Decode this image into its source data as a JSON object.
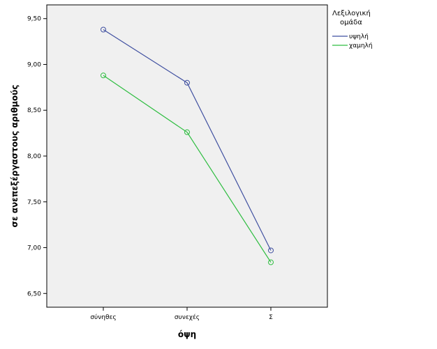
{
  "chart_data": {
    "type": "line",
    "categories": [
      "σύνηθες",
      "συνεχές",
      "Σ"
    ],
    "xlabel": "όψη",
    "ylabel": "σε ανεπεξέργαστους αριθμούς",
    "ylim": [
      6.35,
      9.65
    ],
    "yticks": [
      6.5,
      7.0,
      7.5,
      8.0,
      8.5,
      9.0,
      9.5
    ],
    "ytick_labels": [
      "6,50",
      "7,00",
      "7,50",
      "8,00",
      "8,50",
      "9,00",
      "9,50"
    ],
    "grid": false,
    "legend": {
      "title_line1": "Λεξιλογική",
      "title_line2": "ομάδα",
      "placement": "right"
    },
    "series": [
      {
        "name": "υψηλή",
        "values": [
          9.38,
          8.8,
          6.97
        ],
        "color": "#3f4fa0"
      },
      {
        "name": "χαμηλή",
        "values": [
          8.88,
          8.26,
          6.84
        ],
        "color": "#2ebd40"
      }
    ],
    "colors": {
      "plot_background": "#f0f0f0",
      "axis": "#000000"
    }
  }
}
